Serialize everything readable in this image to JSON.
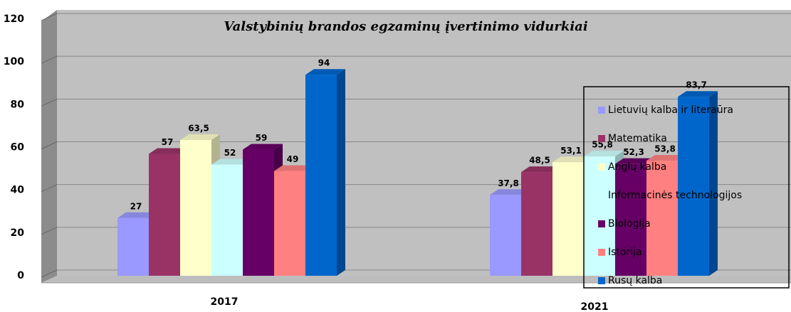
{
  "chart_data": {
    "type": "bar",
    "title": "Valstybinių brandos egzaminų įvertinimo vidurkiai",
    "categories": [
      "2017",
      "2021"
    ],
    "series": [
      {
        "name": "Lietuvių kalba ir literaūra",
        "color": "#9999ff",
        "values": [
          27,
          37.8
        ],
        "value_labels": [
          "27",
          "37,8"
        ]
      },
      {
        "name": "Matematika",
        "color": "#993366",
        "values": [
          57,
          48.5
        ],
        "value_labels": [
          "57",
          "48,5"
        ]
      },
      {
        "name": "Anglų kalba",
        "color": "#ffffcc",
        "values": [
          63.5,
          53.1
        ],
        "value_labels": [
          "63,5",
          "53,1"
        ]
      },
      {
        "name": "Informacinės technologijos",
        "color": "#ccffff",
        "values": [
          52,
          55.8
        ],
        "value_labels": [
          "52",
          "55,8"
        ]
      },
      {
        "name": "Biologija",
        "color": "#660066",
        "values": [
          59,
          52.3
        ],
        "value_labels": [
          "59",
          "52,3"
        ]
      },
      {
        "name": "Istorija",
        "color": "#ff8080",
        "values": [
          49,
          53.8
        ],
        "value_labels": [
          "49",
          "53,8"
        ]
      },
      {
        "name": "Rusų kalba",
        "color": "#0066cc",
        "values": [
          94,
          83.7
        ],
        "value_labels": [
          "94",
          "83,7"
        ]
      }
    ],
    "ylim": [
      0,
      120
    ],
    "yticks": [
      0,
      20,
      40,
      60,
      80,
      100,
      120
    ],
    "grid": true,
    "legend": "right"
  }
}
